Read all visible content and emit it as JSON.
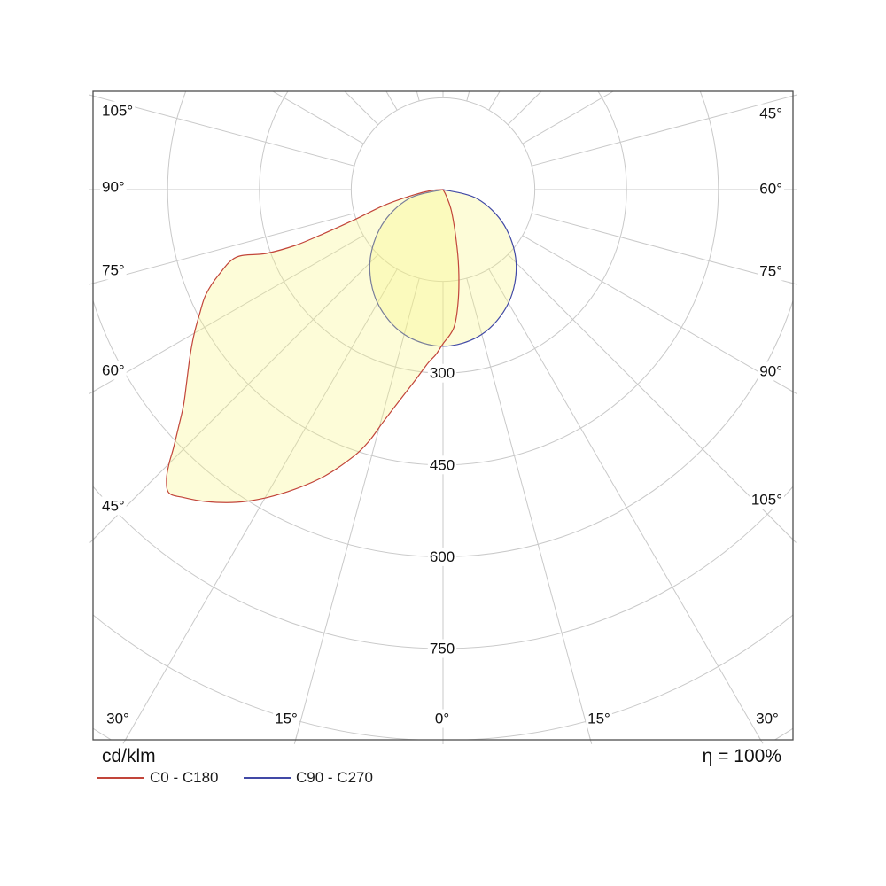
{
  "chart_data": {
    "type": "polar",
    "subtype": "photometric-luminaire-intensity-curve",
    "title": "",
    "unit": "cd/klm",
    "efficiency": "η = 100%",
    "angle_tick_step_deg": 15,
    "angle_labels": {
      "left": [
        "105°",
        "90°",
        "75°",
        "60°",
        "45°"
      ],
      "bottom": [
        "30°",
        "15°",
        "0°",
        "15°",
        "30°"
      ],
      "right": [
        "45°",
        "60°",
        "75°",
        "90°",
        "105°"
      ]
    },
    "radial_axis": {
      "rings": [
        150,
        300,
        450,
        600,
        750,
        900,
        1050
      ],
      "labeled_rings": [
        {
          "value": 300,
          "label": "300"
        },
        {
          "value": 450,
          "label": "450"
        },
        {
          "value": 600,
          "label": "600"
        },
        {
          "value": 750,
          "label": "750"
        }
      ]
    },
    "series": [
      {
        "name": "C0 - C180",
        "color": "#c2453a",
        "fill": "rgba(250,246,125,0.30)",
        "points_deg_cd": [
          [
            90,
            0
          ],
          [
            86,
            18
          ],
          [
            79.7,
            49
          ],
          [
            75,
            100
          ],
          [
            71.2,
            153
          ],
          [
            69.8,
            205
          ],
          [
            69.3,
            258
          ],
          [
            70.2,
            308
          ],
          [
            71.9,
            355
          ],
          [
            69.2,
            392
          ],
          [
            66.1,
            424
          ],
          [
            62.9,
            447
          ],
          [
            59.9,
            470
          ],
          [
            56.9,
            493
          ],
          [
            53.2,
            523
          ],
          [
            50.3,
            551
          ],
          [
            48,
            582
          ],
          [
            46.1,
            612
          ],
          [
            45,
            633
          ],
          [
            43.7,
            654
          ],
          [
            42.1,
            668
          ],
          [
            40.1,
            658
          ],
          [
            37.2,
            640
          ],
          [
            33.4,
            612
          ],
          [
            29.9,
            581
          ],
          [
            26.3,
            546
          ],
          [
            22.4,
            506
          ],
          [
            18.4,
            458
          ],
          [
            16.3,
            427
          ],
          [
            14.5,
            393
          ],
          [
            11.8,
            354
          ],
          [
            8.4,
            316
          ],
          [
            5,
            285
          ],
          [
            2.5,
            270
          ],
          [
            0,
            252
          ],
          [
            -4.4,
            227
          ],
          [
            -7.5,
            188
          ],
          [
            -10.6,
            141
          ],
          [
            -13.6,
            98
          ],
          [
            -21,
            40
          ],
          [
            -27,
            12
          ],
          [
            -33,
            0
          ]
        ]
      },
      {
        "name": "C90 - C270",
        "color": "#4149a6",
        "fill": "rgba(250,246,125,0.30)",
        "points_deg_cd": [
          [
            90,
            0
          ],
          [
            75,
            58
          ],
          [
            60,
            115
          ],
          [
            45,
            169
          ],
          [
            30,
            214
          ],
          [
            15,
            245
          ],
          [
            0,
            256
          ],
          [
            -15,
            245
          ],
          [
            -30,
            214
          ],
          [
            -45,
            169
          ],
          [
            -60,
            115
          ],
          [
            -75,
            58
          ],
          [
            -90,
            0
          ]
        ]
      }
    ],
    "grid_color": "#c9c9c9",
    "border_color": "#4d4d4d",
    "text_color": "#111111"
  }
}
